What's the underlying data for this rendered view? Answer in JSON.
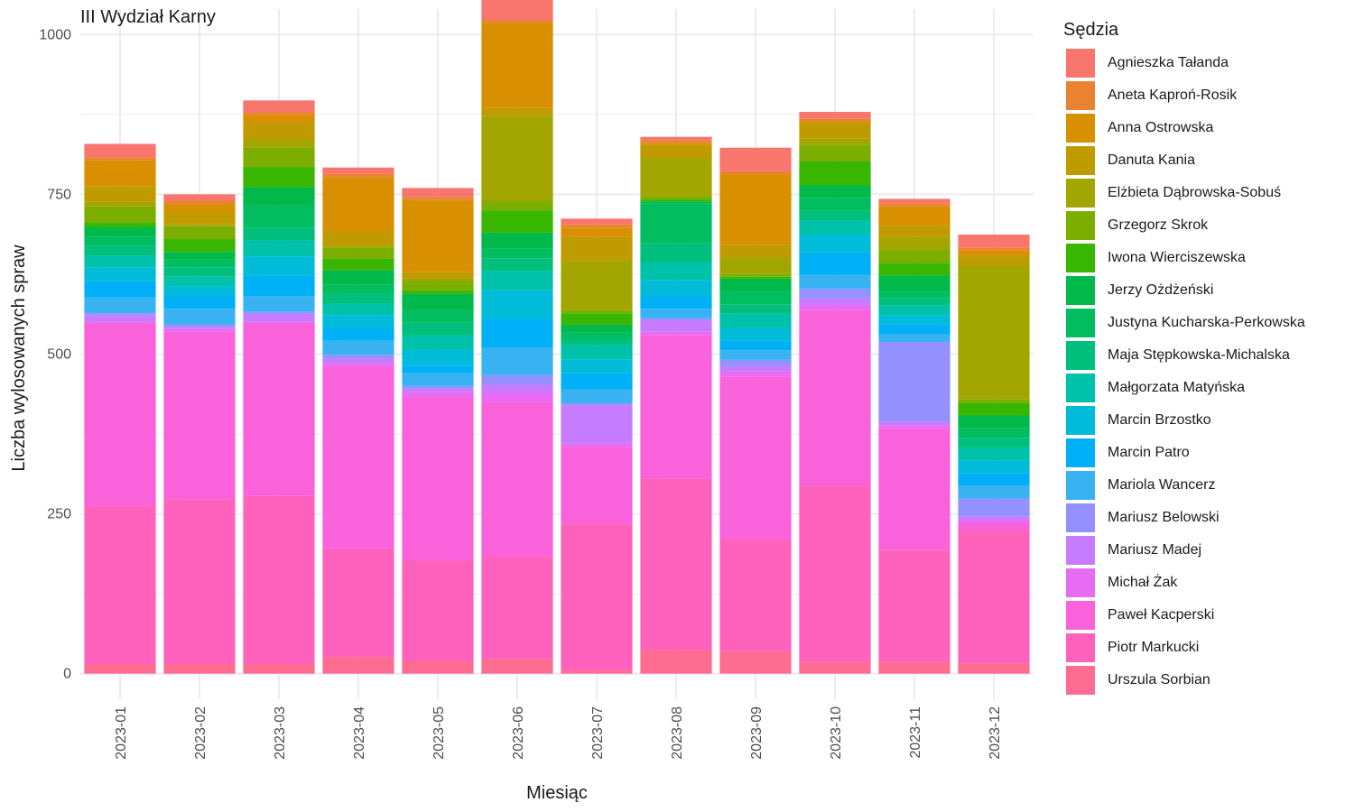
{
  "chart_data": {
    "type": "bar",
    "stacked": true,
    "title": "III Wydział Karny",
    "xlabel": "Miesiąc",
    "ylabel": "Liczba wylosowanych spraw",
    "ylim": [
      -40,
      1040
    ],
    "yticks": [
      0,
      250,
      500,
      750,
      1000
    ],
    "grid": true,
    "legend_title": "Sędzia",
    "legend_position": "right",
    "categories": [
      "2023-01",
      "2023-02",
      "2023-03",
      "2023-04",
      "2023-05",
      "2023-06",
      "2023-07",
      "2023-08",
      "2023-09",
      "2023-10",
      "2023-11",
      "2023-12"
    ],
    "series": [
      {
        "name": "Urszula Sorbian",
        "color": "#FF6C91",
        "values": [
          15,
          15,
          15,
          26,
          20,
          23,
          5,
          37,
          35,
          18,
          18,
          16
        ]
      },
      {
        "name": "Piotr Markucki",
        "color": "#FF62BC",
        "values": [
          248,
          258,
          263,
          170,
          158,
          160,
          230,
          268,
          175,
          276,
          176,
          208
        ]
      },
      {
        "name": "Paweł Kacperski",
        "color": "#FA62DB",
        "values": [
          285,
          262,
          270,
          285,
          255,
          242,
          120,
          225,
          255,
          275,
          190,
          12
        ]
      },
      {
        "name": "Michał Żak",
        "color": "#E76BF3",
        "values": [
          3,
          4,
          3,
          4,
          8,
          15,
          5,
          5,
          8,
          8,
          5,
          5
        ]
      },
      {
        "name": "Mariusz Madej",
        "color": "#C77CFF",
        "values": [
          10,
          4,
          12,
          8,
          5,
          12,
          60,
          18,
          8,
          10,
          5,
          5
        ]
      },
      {
        "name": "Mariusz Belowski",
        "color": "#9590FF",
        "values": [
          3,
          3,
          3,
          6,
          4,
          15,
          3,
          3,
          10,
          15,
          125,
          28
        ]
      },
      {
        "name": "Mariola Wancerz",
        "color": "#39B2F2",
        "values": [
          25,
          25,
          25,
          22,
          20,
          43,
          22,
          15,
          15,
          22,
          12,
          20
        ]
      },
      {
        "name": "Marcin Patro",
        "color": "#00B0F6",
        "values": [
          25,
          20,
          32,
          20,
          12,
          45,
          25,
          20,
          15,
          35,
          15,
          20
        ]
      },
      {
        "name": "Marcin Brzostko",
        "color": "#00BCD8",
        "values": [
          22,
          15,
          30,
          20,
          25,
          45,
          22,
          25,
          20,
          28,
          15,
          20
        ]
      },
      {
        "name": "Małgorzata Matyńska",
        "color": "#00C1AA",
        "values": [
          18,
          15,
          25,
          18,
          22,
          30,
          22,
          28,
          22,
          22,
          15,
          20
        ]
      },
      {
        "name": "Maja Stępkowska-Michalska",
        "color": "#00BF7D",
        "values": [
          15,
          15,
          20,
          15,
          20,
          20,
          10,
          30,
          15,
          15,
          12,
          15
        ]
      },
      {
        "name": "Justyna Kucharska-Perkowska",
        "color": "#00BD5F",
        "values": [
          15,
          12,
          35,
          15,
          20,
          15,
          10,
          62,
          20,
          20,
          10,
          15
        ]
      },
      {
        "name": "Jerzy Ożdżeński",
        "color": "#00B94A",
        "values": [
          15,
          12,
          28,
          22,
          25,
          25,
          12,
          3,
          20,
          20,
          25,
          20
        ]
      },
      {
        "name": "Iwona Wierciszewska",
        "color": "#39B600",
        "values": [
          7,
          20,
          32,
          18,
          6,
          35,
          18,
          3,
          3,
          38,
          20,
          20
        ]
      },
      {
        "name": "Grzegorz Skrok",
        "color": "#7CAE00",
        "values": [
          25,
          20,
          30,
          18,
          15,
          15,
          5,
          5,
          5,
          25,
          20,
          5
        ]
      },
      {
        "name": "Elżbieta Dąbrowska-Sobuś",
        "color": "#A3A500",
        "values": [
          7,
          3,
          13,
          3,
          3,
          133,
          77,
          60,
          25,
          10,
          20,
          210
        ]
      },
      {
        "name": "Danuta Kania",
        "color": "#C09B00",
        "values": [
          25,
          20,
          26,
          22,
          10,
          12,
          37,
          20,
          20,
          25,
          18,
          15
        ]
      },
      {
        "name": "Anna Ostrowska",
        "color": "#D89000",
        "values": [
          40,
          12,
          12,
          85,
          113,
          133,
          15,
          3,
          110,
          3,
          30,
          8
        ]
      },
      {
        "name": "Aneta Kaproń-Rosik",
        "color": "#EA8331",
        "values": [
          5,
          5,
          5,
          5,
          5,
          5,
          5,
          5,
          5,
          3,
          5,
          5
        ]
      },
      {
        "name": "Agnieszka Tałanda",
        "color": "#F8766D",
        "values": [
          21,
          10,
          18,
          10,
          14,
          43,
          9,
          5,
          37,
          11,
          7,
          20
        ]
      }
    ]
  }
}
